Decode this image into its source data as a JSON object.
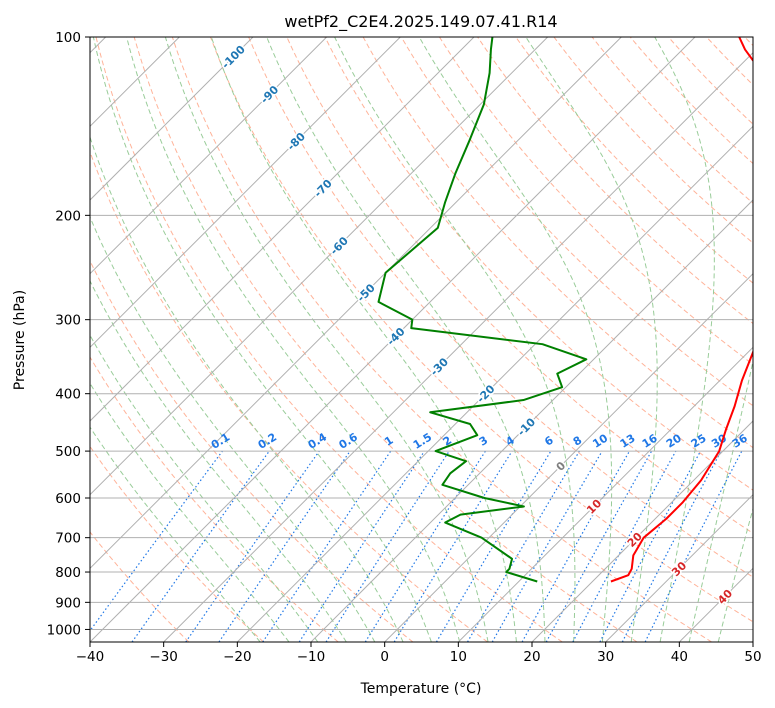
{
  "chart_data": {
    "type": "line",
    "title": "wetPf2_C2E4.2025.149.07.41.R14",
    "xlabel": "Temperature (°C)",
    "ylabel": "Pressure (hPa)",
    "xlim": [
      -40,
      50
    ],
    "ylim": [
      1050,
      100
    ],
    "y_scale": "log",
    "x_ticks": [
      -40,
      -30,
      -20,
      -10,
      0,
      10,
      20,
      30,
      40,
      50
    ],
    "y_ticks": [
      100,
      200,
      300,
      400,
      500,
      600,
      700,
      800,
      900,
      1000
    ],
    "grid": true,
    "skew": true,
    "series": [
      {
        "color": "#ff0000",
        "points": [
          [
            22.5,
            830
          ],
          [
            24.0,
            810
          ],
          [
            23.6,
            790
          ],
          [
            22.0,
            750
          ],
          [
            21.0,
            700
          ],
          [
            21.5,
            650
          ],
          [
            21.5,
            610
          ],
          [
            21.0,
            560
          ],
          [
            19.5,
            500
          ],
          [
            17.5,
            460
          ],
          [
            15.5,
            420
          ],
          [
            13.0,
            380
          ],
          [
            10.0,
            330
          ],
          [
            5.7,
            270
          ],
          [
            -0.5,
            210
          ],
          [
            -4.5,
            180
          ],
          [
            -8.5,
            160
          ],
          [
            -14.5,
            140
          ],
          [
            -20.5,
            125
          ],
          [
            -26.0,
            115
          ],
          [
            -31.5,
            105
          ],
          [
            -34.0,
            100
          ]
        ]
      },
      {
        "color": "#008000",
        "points": [
          [
            12.5,
            830
          ],
          [
            7.0,
            800
          ],
          [
            7.0,
            790
          ],
          [
            6.0,
            760
          ],
          [
            -1.0,
            700
          ],
          [
            -8.0,
            660
          ],
          [
            -7.0,
            640
          ],
          [
            0.5,
            620
          ],
          [
            -6.0,
            600
          ],
          [
            -13.5,
            570
          ],
          [
            -14.0,
            545
          ],
          [
            -13.5,
            520
          ],
          [
            -19.0,
            500
          ],
          [
            -15.5,
            470
          ],
          [
            -18.0,
            450
          ],
          [
            -25.0,
            430
          ],
          [
            -14.0,
            410
          ],
          [
            -10.5,
            390
          ],
          [
            -13.0,
            370
          ],
          [
            -11.0,
            350
          ],
          [
            -19.0,
            330
          ],
          [
            -39.0,
            310
          ],
          [
            -40.0,
            300
          ],
          [
            -47.0,
            280
          ],
          [
            -50.0,
            250
          ],
          [
            -49.0,
            210
          ],
          [
            -51.5,
            190
          ],
          [
            -54.0,
            170
          ],
          [
            -56.5,
            150
          ],
          [
            -59.5,
            130
          ],
          [
            -63.0,
            115
          ],
          [
            -66.0,
            105
          ],
          [
            -67.5,
            100
          ]
        ]
      }
    ],
    "mixing_ratio_labels": [
      "0.1",
      "0.2",
      "0.4",
      "0.6",
      "1",
      "1.5",
      "2",
      "3",
      "4",
      "6",
      "8",
      "10",
      "13",
      "16",
      "20",
      "25",
      "30",
      "36"
    ],
    "temperature_labels": [
      "-100",
      "-90",
      "-80",
      "-70",
      "-60",
      "-50",
      "-40",
      "-30",
      "-20",
      "-10",
      "0",
      "10",
      "20",
      "30",
      "40"
    ],
    "colors": {
      "temperature": "#ff0000",
      "dewpoint": "#008000",
      "isotherm_grid": "#b0b0b0",
      "dry_adiabat": "#ffb399",
      "moist_adiabat": "#99cc99",
      "mixing_ratio": "#1f77e6",
      "label_blue": "#1f77b4",
      "label_red": "#d62728",
      "label_gray": "#808080"
    }
  }
}
